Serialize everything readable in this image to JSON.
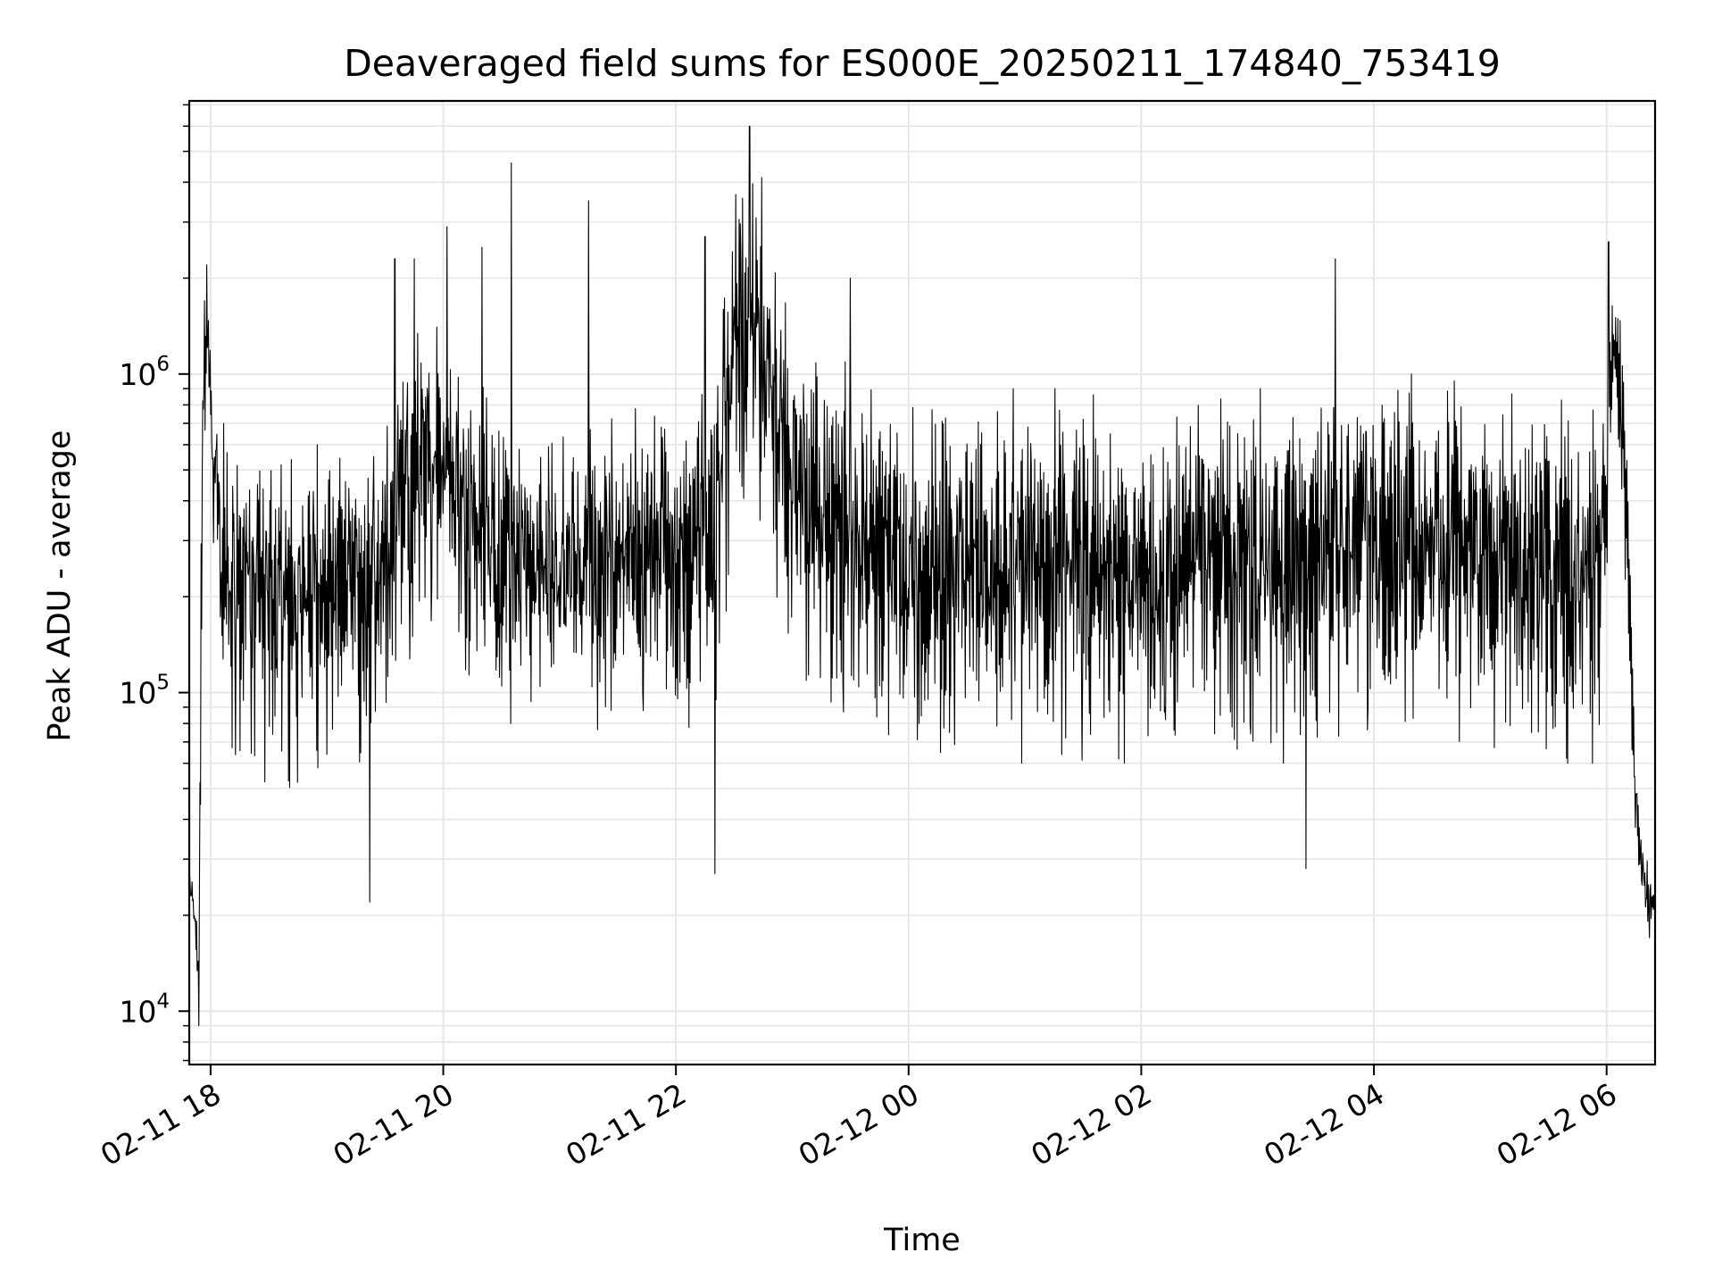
{
  "chart_data": {
    "type": "line",
    "title": "Deaveraged field sums for ES000E_20250211_174840_753419",
    "xlabel": "Time",
    "ylabel": "Peak ADU - average",
    "yscale": "log",
    "ylim": [
      6800,
      7200000
    ],
    "xlim": [
      "2025-02-11 17:49",
      "2025-02-12 06:25"
    ],
    "grid": true,
    "x_ticks": [
      "2025-02-11 18:00",
      "2025-02-11 20:00",
      "2025-02-11 22:00",
      "2025-02-12 00:00",
      "2025-02-12 02:00",
      "2025-02-12 04:00",
      "2025-02-12 06:00"
    ],
    "x_tick_labels": [
      "02-11 18",
      "02-11 20",
      "02-11 22",
      "02-12 00",
      "02-12 02",
      "02-12 04",
      "02-12 06"
    ],
    "y_ticks": [
      10000,
      100000,
      1000000
    ],
    "y_tick_labels": [
      {
        "base": "10",
        "exp": "4"
      },
      {
        "base": "10",
        "exp": "5"
      },
      {
        "base": "10",
        "exp": "6"
      }
    ],
    "line_color": "#000000",
    "grid_color": "#e6e6e6",
    "start": "2025-02-11 17:49",
    "series": [
      {
        "x": [
          "2025-02-11 17:49",
          "2025-02-11 17:52",
          "2025-02-11 17:54",
          "2025-02-11 17:55",
          "2025-02-11 17:56",
          "2025-02-11 17:58",
          "2025-02-11 18:00",
          "2025-02-11 18:05",
          "2025-02-11 18:15",
          "2025-02-11 18:20",
          "2025-02-11 18:40",
          "2025-02-11 19:00",
          "2025-02-11 19:20",
          "2025-02-11 19:40",
          "2025-02-11 19:50",
          "2025-02-11 20:00",
          "2025-02-11 20:30",
          "2025-02-11 21:00",
          "2025-02-11 21:30",
          "2025-02-11 22:00",
          "2025-02-11 22:20",
          "2025-02-11 22:30",
          "2025-02-11 22:40",
          "2025-02-11 22:50",
          "2025-02-11 23:00",
          "2025-02-11 23:30",
          "2025-02-12 00:00",
          "2025-02-12 00:30",
          "2025-02-12 01:00",
          "2025-02-12 01:30",
          "2025-02-12 02:00",
          "2025-02-12 02:30",
          "2025-02-12 03:00",
          "2025-02-12 03:30",
          "2025-02-12 04:00",
          "2025-02-12 04:30",
          "2025-02-12 05:00",
          "2025-02-12 05:30",
          "2025-02-12 05:55",
          "2025-02-12 06:00",
          "2025-02-12 06:02",
          "2025-02-12 06:05",
          "2025-02-12 06:10",
          "2025-02-12 06:15",
          "2025-02-12 06:20",
          "2025-02-12 06:25"
        ],
        "lo": [
          20000,
          17000,
          9000,
          30000,
          400000,
          700000,
          500000,
          80000,
          60000,
          50000,
          50000,
          60000,
          60000,
          100000,
          150000,
          150000,
          80000,
          80000,
          70000,
          70000,
          70000,
          300000,
          300000,
          200000,
          100000,
          80000,
          70000,
          60000,
          60000,
          60000,
          60000,
          80000,
          60000,
          60000,
          70000,
          70000,
          60000,
          60000,
          60000,
          150000,
          400000,
          500000,
          200000,
          30000,
          18000,
          18000
        ],
        "hi": [
          30000,
          22000,
          16000,
          300000,
          1400000,
          2200000,
          1300000,
          700000,
          700000,
          600000,
          600000,
          600000,
          600000,
          1400000,
          2000000,
          1200000,
          800000,
          700000,
          800000,
          900000,
          1000000,
          4500000,
          6000000,
          2500000,
          1500000,
          1200000,
          800000,
          900000,
          900000,
          900000,
          700000,
          800000,
          900000,
          900000,
          1000000,
          1000000,
          900000,
          900000,
          900000,
          1100000,
          2500000,
          2000000,
          1000000,
          60000,
          30000,
          28000
        ],
        "spikes": [
          [
            "2025-02-11 17:58",
            2200000
          ],
          [
            "2025-02-11 19:35",
            2300000
          ],
          [
            "2025-02-11 19:45",
            2300000
          ],
          [
            "2025-02-11 20:02",
            2900000
          ],
          [
            "2025-02-11 20:20",
            2500000
          ],
          [
            "2025-02-11 20:35",
            4600000
          ],
          [
            "2025-02-11 21:15",
            3500000
          ],
          [
            "2025-02-11 22:15",
            2700000
          ],
          [
            "2025-02-11 22:38",
            6000000
          ],
          [
            "2025-02-11 23:30",
            2000000
          ],
          [
            "2025-02-12 03:40",
            2300000
          ],
          [
            "2025-02-12 06:01",
            2600000
          ],
          [
            "2025-02-11 19:22",
            22000
          ],
          [
            "2025-02-11 17:54",
            9000
          ],
          [
            "2025-02-12 03:25",
            28000
          ],
          [
            "2025-02-11 22:20",
            27000
          ],
          [
            "2025-02-12 06:22",
            17000
          ]
        ]
      }
    ]
  }
}
